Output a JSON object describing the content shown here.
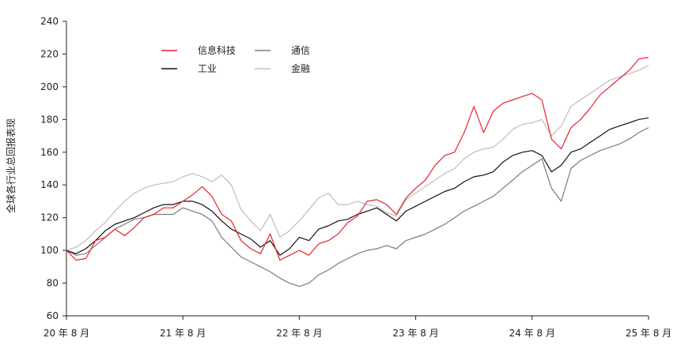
{
  "chart_data": {
    "type": "line",
    "title": "",
    "xlabel": "",
    "ylabel": "全球各行业总回报表现",
    "ylim": [
      60,
      240
    ],
    "yticks": [
      60,
      80,
      100,
      120,
      140,
      160,
      180,
      200,
      220,
      240
    ],
    "xticks": [
      "20 年 8 月",
      "21 年 8 月",
      "22 年 8 月",
      "23 年 8 月",
      "24 年 8 月",
      "25 年 8 月"
    ],
    "grid": false,
    "legend_position": "top-left",
    "legend": [
      "信息科技",
      "工业",
      "通信",
      "金融"
    ],
    "x": [
      0,
      1,
      2,
      3,
      4,
      5,
      6,
      7,
      8,
      9,
      10,
      11,
      12,
      13,
      14,
      15,
      16,
      17,
      18,
      19,
      20,
      21,
      22,
      23,
      24,
      25,
      26,
      27,
      28,
      29,
      30,
      31,
      32,
      33,
      34,
      35,
      36,
      37,
      38,
      39,
      40,
      41,
      42,
      43,
      44,
      45,
      46,
      47,
      48,
      49,
      50,
      51,
      52,
      53,
      54,
      55,
      56,
      57,
      58,
      59,
      60
    ],
    "series": [
      {
        "name": "信息科技",
        "color": "#e8232a",
        "values": [
          100,
          94,
          95,
          106,
          108,
          113,
          109,
          114,
          120,
          122,
          126,
          126,
          130,
          134,
          139,
          133,
          122,
          118,
          106,
          101,
          98,
          110,
          94,
          97,
          100,
          97,
          104,
          106,
          110,
          117,
          121,
          130,
          131,
          128,
          122,
          132,
          138,
          143,
          152,
          158,
          160,
          172,
          188,
          172,
          185,
          190,
          192,
          194,
          196,
          192,
          168,
          162,
          175,
          180,
          187,
          195,
          200,
          205,
          210,
          217,
          218
        ]
      },
      {
        "name": "工业",
        "color": "#111111",
        "values": [
          100,
          98,
          101,
          106,
          112,
          116,
          118,
          120,
          123,
          126,
          128,
          128,
          130,
          130,
          128,
          124,
          118,
          113,
          110,
          107,
          102,
          106,
          97,
          101,
          108,
          106,
          113,
          115,
          118,
          119,
          122,
          124,
          126,
          122,
          118,
          124,
          127,
          130,
          133,
          136,
          138,
          142,
          145,
          146,
          148,
          154,
          158,
          160,
          161,
          158,
          148,
          152,
          160,
          162,
          166,
          170,
          174,
          176,
          178,
          180,
          181
        ]
      },
      {
        "name": "通信",
        "color": "#7a7a7a",
        "values": [
          100,
          97,
          98,
          103,
          108,
          113,
          116,
          119,
          120,
          122,
          122,
          122,
          126,
          124,
          122,
          118,
          108,
          102,
          96,
          93,
          90,
          87,
          83,
          80,
          78,
          80,
          85,
          88,
          92,
          95,
          98,
          100,
          101,
          103,
          101,
          106,
          108,
          110,
          113,
          116,
          120,
          124,
          127,
          130,
          133,
          138,
          143,
          148,
          152,
          156,
          138,
          130,
          150,
          155,
          158,
          161,
          163,
          165,
          168,
          172,
          175
        ]
      },
      {
        "name": "金融",
        "color": "#bdbdbd",
        "values": [
          100,
          102,
          106,
          112,
          117,
          124,
          130,
          135,
          138,
          140,
          141,
          142,
          145,
          147,
          145,
          142,
          146,
          140,
          125,
          118,
          112,
          122,
          108,
          112,
          118,
          125,
          132,
          135,
          128,
          128,
          130,
          128,
          127,
          123,
          121,
          131,
          135,
          139,
          143,
          147,
          150,
          156,
          160,
          162,
          163,
          168,
          174,
          177,
          178,
          180,
          170,
          176,
          188,
          192,
          196,
          200,
          204,
          206,
          208,
          210,
          213
        ]
      }
    ]
  }
}
